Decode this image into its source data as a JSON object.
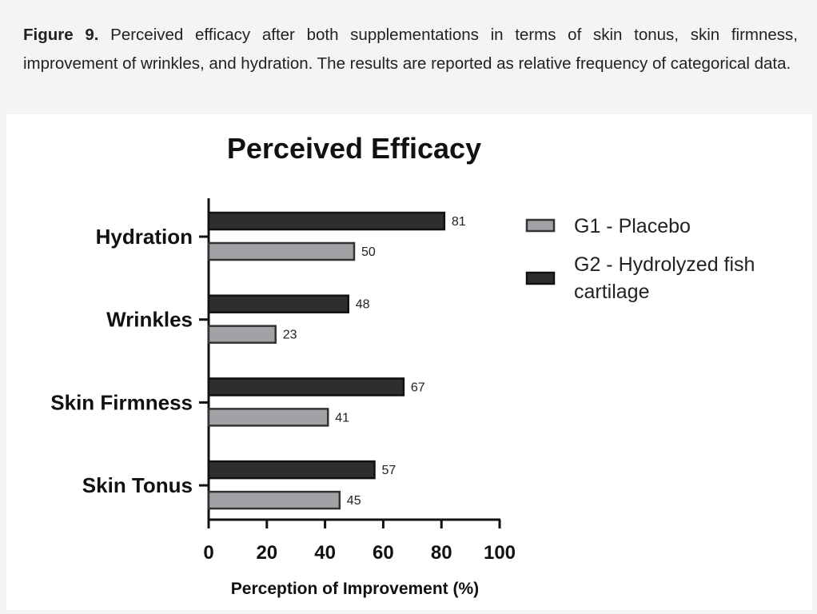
{
  "caption": {
    "label": "Figure 9.",
    "text": " Perceived efficacy after both supplementations in terms of skin tonus, skin firmness, improvement of wrinkles, and hydration. The results are reported as relative frequency of categorical data."
  },
  "chart_data": {
    "type": "bar",
    "orientation": "horizontal",
    "title": "Perceived Efficacy",
    "xlabel": "Perception of Improvement (%)",
    "ylabel": "",
    "xlim": [
      0,
      100
    ],
    "xticks": [
      0,
      20,
      40,
      60,
      80,
      100
    ],
    "categories": [
      "Hydration",
      "Wrinkles",
      "Skin Firmness",
      "Skin Tonus"
    ],
    "series": [
      {
        "name": "G1 - Placebo",
        "color": "#a2a2a6",
        "values": [
          50,
          23,
          41,
          45
        ]
      },
      {
        "name": "G2 - Hydrolyzed fish cartilage",
        "color": "#2e2e2e",
        "values": [
          81,
          48,
          67,
          57
        ]
      }
    ],
    "legend": {
      "position": "top-right",
      "entries": [
        "G1 - Placebo",
        "G2 - Hydrolyzed fish",
        "cartilage"
      ]
    },
    "grid": false
  }
}
